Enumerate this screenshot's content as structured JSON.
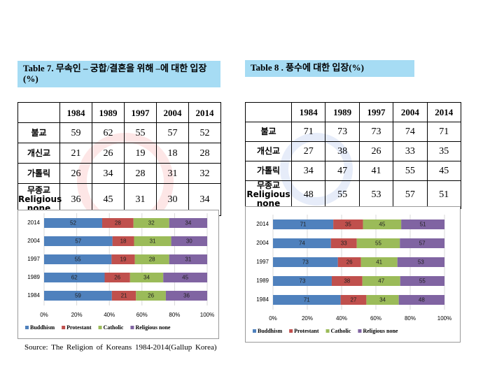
{
  "tables": [
    {
      "title": "Table 7. 무속인 – 궁합/결혼을 위해 –에 대한 입장 (%)",
      "columns": [
        "1984",
        "1989",
        "1997",
        "2004",
        "2014"
      ],
      "rows": [
        {
          "label": "불교",
          "values": [
            59,
            62,
            55,
            57,
            52
          ]
        },
        {
          "label": "개신교",
          "values": [
            21,
            26,
            19,
            18,
            28
          ]
        },
        {
          "label": "가톨릭",
          "values": [
            26,
            34,
            28,
            31,
            32
          ]
        },
        {
          "label": "무종교 Religious none",
          "values": [
            36,
            45,
            31,
            30,
            34
          ]
        }
      ]
    },
    {
      "title": "Table 8 . 풍수에 대한 입장(%)",
      "columns": [
        "1984",
        "1989",
        "1997",
        "2004",
        "2014"
      ],
      "rows": [
        {
          "label": "불교",
          "values": [
            71,
            73,
            73,
            74,
            71
          ]
        },
        {
          "label": "개신교",
          "values": [
            27,
            38,
            26,
            33,
            35
          ]
        },
        {
          "label": "가톨릭",
          "values": [
            34,
            47,
            41,
            55,
            45
          ]
        },
        {
          "label": "무종교 Religious none",
          "values": [
            48,
            55,
            53,
            57,
            51
          ]
        }
      ]
    }
  ],
  "chart_data": [
    {
      "type": "bar",
      "orientation": "horizontal",
      "stacked": "percent",
      "categories": [
        "2014",
        "2004",
        "1997",
        "1989",
        "1984"
      ],
      "series": [
        {
          "name": "Buddhism",
          "color": "#4f81bd",
          "values": [
            52,
            57,
            55,
            62,
            59
          ]
        },
        {
          "name": "Protestant",
          "color": "#c0504d",
          "values": [
            28,
            18,
            19,
            26,
            21
          ]
        },
        {
          "name": "Catholic",
          "color": "#9bbb59",
          "values": [
            32,
            31,
            28,
            34,
            26
          ]
        },
        {
          "name": "Religious none",
          "color": "#8064a2",
          "values": [
            34,
            30,
            31,
            45,
            36
          ]
        }
      ],
      "xlim": [
        0,
        100
      ],
      "xticks": [
        {
          "value": 0,
          "label": "0%"
        },
        {
          "value": 20,
          "label": "20%"
        },
        {
          "value": 40,
          "label": "40%"
        },
        {
          "value": 60,
          "label": "60%"
        },
        {
          "value": 80,
          "label": "80%"
        },
        {
          "value": 100,
          "label": "100%"
        }
      ],
      "grid": true,
      "legend": "bottom"
    },
    {
      "type": "bar",
      "orientation": "horizontal",
      "stacked": "percent",
      "categories": [
        "2014",
        "2004",
        "1997",
        "1989",
        "1984"
      ],
      "series": [
        {
          "name": "Buddhism",
          "color": "#4f81bd",
          "values": [
            71,
            74,
            73,
            73,
            71
          ]
        },
        {
          "name": "Protestant",
          "color": "#c0504d",
          "values": [
            35,
            33,
            26,
            38,
            27
          ]
        },
        {
          "name": "Catholic",
          "color": "#9bbb59",
          "values": [
            45,
            55,
            41,
            47,
            34
          ]
        },
        {
          "name": "Religious none",
          "color": "#8064a2",
          "values": [
            51,
            57,
            53,
            55,
            48
          ]
        }
      ],
      "xlim": [
        0,
        100
      ],
      "xticks": [
        {
          "value": 0,
          "label": "0%"
        },
        {
          "value": 20,
          "label": "20%"
        },
        {
          "value": 40,
          "label": "40%"
        },
        {
          "value": 60,
          "label": "60%"
        },
        {
          "value": 80,
          "label": "80%"
        },
        {
          "value": 100,
          "label": "100%"
        }
      ],
      "grid": true,
      "legend": "bottom"
    }
  ],
  "source": "Source: The Religion of Koreans 1984-2014(Gallup Korea)"
}
